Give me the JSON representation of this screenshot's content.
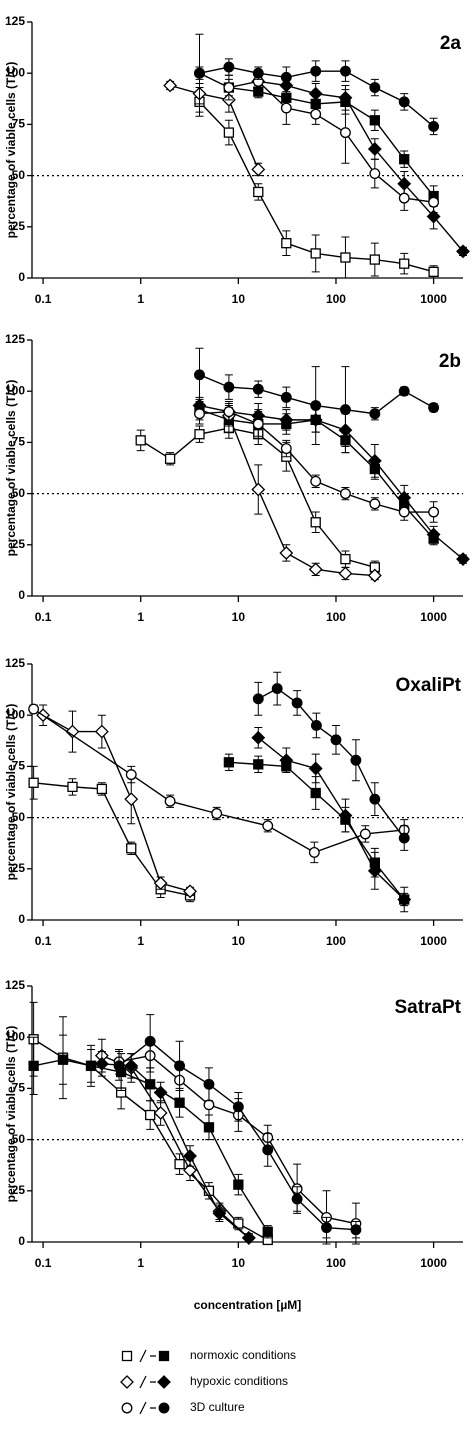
{
  "chart_data": [
    {
      "type": "line",
      "title": "2a",
      "ylabel": "percentage of viable cells (T/C)",
      "xlog": true,
      "xlim": [
        0.077,
        2000
      ],
      "ylim": [
        0,
        125
      ],
      "xticks": [
        0.1,
        1,
        10,
        100,
        1000
      ],
      "yticks": [
        0,
        25,
        50,
        75,
        100,
        125
      ],
      "hline": 50,
      "series": [
        {
          "marker": "square",
          "filled": false,
          "color": "#000000",
          "x": [
            4,
            8,
            16,
            31,
            62,
            125,
            250,
            500,
            1000
          ],
          "values": [
            86,
            71,
            42,
            17,
            12,
            10,
            9,
            7,
            3
          ],
          "errors": [
            7,
            6,
            4,
            6,
            9,
            10,
            8,
            5,
            3
          ]
        },
        {
          "marker": "square",
          "filled": true,
          "color": "#000000",
          "x": [
            8,
            16,
            31,
            62,
            125,
            250,
            500,
            1000
          ],
          "values": [
            93,
            91,
            88,
            85,
            86,
            77,
            58,
            40
          ],
          "errors": [
            4,
            3,
            5,
            4,
            6,
            5,
            4,
            5
          ]
        },
        {
          "marker": "diamond",
          "filled": false,
          "color": "#000000",
          "x": [
            2,
            4,
            8,
            16
          ],
          "values": [
            94,
            90,
            87,
            53
          ],
          "errors": [
            2,
            5,
            6,
            3
          ]
        },
        {
          "marker": "diamond",
          "filled": true,
          "color": "#000000",
          "x": [
            16,
            31,
            62,
            125,
            250,
            500,
            1000,
            2000
          ],
          "values": [
            96,
            94,
            90,
            88,
            63,
            46,
            30,
            13
          ],
          "errors": [
            3,
            4,
            5,
            6,
            5,
            6,
            6,
            2
          ]
        },
        {
          "marker": "circle",
          "filled": false,
          "color": "#000000",
          "x": [
            4,
            8,
            16,
            31,
            62,
            125,
            250,
            500,
            1000
          ],
          "values": [
            100,
            93,
            96,
            83,
            80,
            71,
            51,
            39,
            37
          ],
          "errors": [
            19,
            6,
            5,
            8,
            5,
            15,
            7,
            6,
            5
          ]
        },
        {
          "marker": "circle",
          "filled": true,
          "color": "#000000",
          "x": [
            4,
            8,
            16,
            31,
            62,
            125,
            250,
            500,
            1000
          ],
          "values": [
            100,
            103,
            100,
            98,
            101,
            101,
            93,
            86,
            74
          ],
          "errors": [
            3,
            4,
            3,
            5,
            5,
            5,
            4,
            4,
            4
          ]
        }
      ]
    },
    {
      "type": "line",
      "title": "2b",
      "ylabel": "percentage of viable cells (T/C)",
      "xlog": true,
      "xlim": [
        0.077,
        2000
      ],
      "ylim": [
        0,
        125
      ],
      "xticks": [
        0.1,
        1,
        10,
        100,
        1000
      ],
      "yticks": [
        0,
        25,
        50,
        75,
        100,
        125
      ],
      "hline": 50,
      "series": [
        {
          "marker": "square",
          "filled": false,
          "color": "#000000",
          "x": [
            1,
            2,
            4,
            8,
            16,
            31,
            62,
            125,
            250
          ],
          "values": [
            76,
            67,
            79,
            82,
            79,
            68,
            36,
            18,
            14
          ],
          "errors": [
            5,
            3,
            4,
            5,
            5,
            7,
            5,
            4,
            3
          ]
        },
        {
          "marker": "square",
          "filled": true,
          "color": "#000000",
          "x": [
            4,
            8,
            16,
            31,
            62,
            125,
            250,
            500,
            1000
          ],
          "values": [
            91,
            86,
            84,
            84,
            86,
            76,
            62,
            44,
            28
          ],
          "errors": [
            5,
            6,
            7,
            5,
            6,
            6,
            5,
            4,
            3
          ]
        },
        {
          "marker": "diamond",
          "filled": false,
          "color": "#000000",
          "x": [
            8,
            16,
            31,
            62,
            125,
            250
          ],
          "values": [
            88,
            52,
            21,
            13,
            11,
            10
          ],
          "errors": [
            5,
            12,
            4,
            3,
            3,
            2
          ]
        },
        {
          "marker": "diamond",
          "filled": true,
          "color": "#000000",
          "x": [
            4,
            8,
            16,
            31,
            62,
            125,
            250,
            500,
            1000,
            2000
          ],
          "values": [
            93,
            90,
            88,
            86,
            86,
            81,
            66,
            48,
            30,
            18
          ],
          "errors": [
            4,
            5,
            6,
            5,
            6,
            8,
            8,
            6,
            4,
            2
          ]
        },
        {
          "marker": "circle",
          "filled": false,
          "color": "#000000",
          "x": [
            4,
            8,
            16,
            31,
            62,
            125,
            250,
            500,
            1000
          ],
          "values": [
            89,
            90,
            84,
            72,
            56,
            50,
            45,
            41,
            41
          ],
          "errors": [
            5,
            4,
            6,
            4,
            3,
            3,
            3,
            4,
            5
          ]
        },
        {
          "marker": "circle",
          "filled": true,
          "color": "#000000",
          "x": [
            4,
            8,
            16,
            31,
            62,
            125,
            250,
            500,
            1000
          ],
          "values": [
            108,
            102,
            101,
            97,
            93,
            91,
            89,
            100,
            92
          ],
          "errors": [
            13,
            6,
            4,
            5,
            19,
            21,
            3,
            2,
            2
          ]
        }
      ]
    },
    {
      "type": "line",
      "title": "OxaliPt",
      "ylabel": "percentage of viable cells (T/C)",
      "xlog": true,
      "xlim": [
        0.077,
        2000
      ],
      "ylim": [
        0,
        125
      ],
      "xticks": [
        0.1,
        1,
        10,
        100,
        1000
      ],
      "yticks": [
        0,
        25,
        50,
        75,
        100,
        125
      ],
      "hline": 50,
      "series": [
        {
          "marker": "square",
          "filled": false,
          "color": "#000000",
          "x": [
            0.08,
            0.2,
            0.4,
            0.8,
            1.6,
            3.2
          ],
          "values": [
            67,
            65,
            64,
            35,
            15,
            12
          ],
          "errors": [
            8,
            4,
            3,
            3,
            4,
            3
          ]
        },
        {
          "marker": "square",
          "filled": true,
          "color": "#000000",
          "x": [
            8,
            16,
            31,
            62,
            125,
            250,
            500
          ],
          "values": [
            77,
            76,
            75,
            62,
            49,
            28,
            10
          ],
          "errors": [
            4,
            4,
            3,
            8,
            6,
            7,
            6
          ]
        },
        {
          "marker": "diamond",
          "filled": false,
          "color": "#000000",
          "x": [
            0.1,
            0.2,
            0.4,
            0.8,
            1.6,
            3.2
          ],
          "values": [
            100,
            92,
            92,
            59,
            18,
            14
          ],
          "errors": [
            5,
            10,
            8,
            12,
            3,
            2
          ]
        },
        {
          "marker": "diamond",
          "filled": true,
          "color": "#000000",
          "x": [
            16,
            31,
            62,
            125,
            250,
            500
          ],
          "values": [
            89,
            78,
            74,
            51,
            24,
            10
          ],
          "errors": [
            5,
            6,
            7,
            8,
            9,
            3
          ]
        },
        {
          "marker": "circle",
          "filled": false,
          "color": "#000000",
          "x": [
            0.08,
            0.8,
            2,
            6,
            20,
            60,
            200,
            500
          ],
          "values": [
            103,
            71,
            58,
            52,
            46,
            33,
            42,
            44
          ],
          "errors": [
            2,
            4,
            3,
            3,
            3,
            5,
            4,
            5
          ]
        },
        {
          "marker": "circle",
          "filled": true,
          "color": "#000000",
          "x": [
            16,
            25,
            40,
            63,
            100,
            160,
            250,
            500
          ],
          "values": [
            108,
            113,
            106,
            95,
            88,
            78,
            59,
            40
          ],
          "errors": [
            8,
            8,
            6,
            6,
            7,
            10,
            8,
            6
          ]
        }
      ]
    },
    {
      "type": "line",
      "title": "SatraPt",
      "ylabel": "percentage of viable cells (T/C)",
      "xlabel": "concentration [µM]",
      "xlog": true,
      "xlim": [
        0.077,
        2000
      ],
      "ylim": [
        0,
        125
      ],
      "xticks": [
        0.1,
        1,
        10,
        100,
        1000
      ],
      "yticks": [
        0,
        25,
        50,
        75,
        100,
        125
      ],
      "hline": 50,
      "series": [
        {
          "marker": "square",
          "filled": false,
          "color": "#000000",
          "x": [
            0.08,
            0.16,
            0.31,
            0.63,
            1.25,
            2.5,
            5,
            10,
            20
          ],
          "values": [
            99,
            90,
            86,
            73,
            62,
            38,
            25,
            9,
            1
          ],
          "errors": [
            18,
            20,
            10,
            8,
            7,
            5,
            4,
            3,
            2
          ]
        },
        {
          "marker": "square",
          "filled": true,
          "color": "#000000",
          "x": [
            0.08,
            0.16,
            0.31,
            0.63,
            1.25,
            2.5,
            5,
            10,
            20
          ],
          "values": [
            86,
            89,
            86,
            83,
            77,
            68,
            56,
            28,
            5
          ],
          "errors": [
            14,
            12,
            8,
            9,
            8,
            7,
            6,
            5,
            3
          ]
        },
        {
          "marker": "diamond",
          "filled": false,
          "color": "#000000",
          "x": [
            0.4,
            0.8,
            1.6,
            3.2,
            6.4,
            12.8
          ],
          "values": [
            91,
            85,
            63,
            35,
            15,
            2
          ],
          "errors": [
            8,
            7,
            6,
            5,
            4,
            2
          ]
        },
        {
          "marker": "diamond",
          "filled": true,
          "color": "#000000",
          "x": [
            0.4,
            0.8,
            1.6,
            3.2,
            6.4,
            12.8
          ],
          "values": [
            87,
            86,
            73,
            42,
            14,
            2
          ],
          "errors": [
            6,
            6,
            5,
            5,
            4,
            2
          ]
        },
        {
          "marker": "circle",
          "filled": false,
          "color": "#000000",
          "x": [
            0.6,
            1.25,
            2.5,
            5,
            10,
            20,
            40,
            80,
            160
          ],
          "values": [
            88,
            91,
            79,
            67,
            62,
            51,
            26,
            12,
            9
          ],
          "errors": [
            6,
            8,
            9,
            9,
            8,
            6,
            12,
            13,
            10
          ]
        },
        {
          "marker": "circle",
          "filled": true,
          "color": "#000000",
          "x": [
            0.6,
            1.25,
            2.5,
            5,
            10,
            20,
            40,
            80,
            160
          ],
          "values": [
            86,
            98,
            86,
            77,
            66,
            45,
            21,
            7,
            6
          ],
          "errors": [
            7,
            13,
            12,
            8,
            7,
            8,
            6,
            5,
            4
          ]
        }
      ]
    }
  ],
  "legend": [
    {
      "label": "normoxic conditions",
      "marker": "square"
    },
    {
      "label": "hypoxic conditions",
      "marker": "diamond"
    },
    {
      "label": "3D culture",
      "marker": "circle"
    }
  ]
}
